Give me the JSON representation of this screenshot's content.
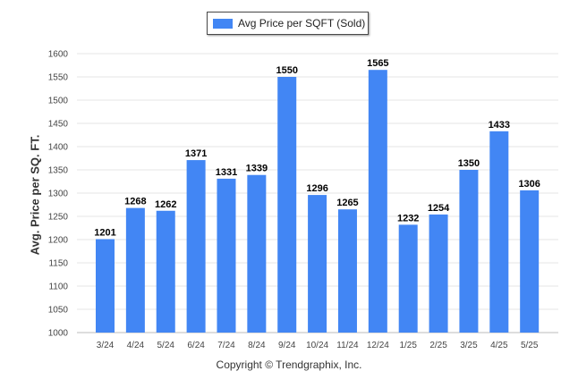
{
  "chart_data": {
    "type": "bar",
    "categories": [
      "3/24",
      "4/24",
      "5/24",
      "6/24",
      "7/24",
      "8/24",
      "9/24",
      "10/24",
      "11/24",
      "12/24",
      "1/25",
      "2/25",
      "3/25",
      "4/25",
      "5/25"
    ],
    "series": [
      {
        "name": "Avg Price per SQFT (Sold)",
        "values": [
          1201,
          1268,
          1262,
          1371,
          1331,
          1339,
          1550,
          1296,
          1265,
          1565,
          1232,
          1254,
          1350,
          1433,
          1306
        ]
      }
    ],
    "data_labels": [
      "1201",
      "1268",
      "1262",
      "1371",
      "1331",
      "1339",
      "1550",
      "1296",
      "1265",
      "1565",
      "1232",
      "1254",
      "1350",
      "1433",
      "1306"
    ],
    "ylabel": "Avg. Price per SQ. FT.",
    "xlabel": "",
    "ylim": [
      1000,
      1600
    ],
    "yticks": [
      1000,
      1050,
      1100,
      1150,
      1200,
      1250,
      1300,
      1350,
      1400,
      1450,
      1500,
      1550,
      1600
    ],
    "grid": true,
    "legend_position": "top-center",
    "bar_color": "#4286f4"
  },
  "legend": {
    "label": "Avg Price per SQFT (Sold)"
  },
  "footer": {
    "text": "Copyright © Trendgraphix, Inc."
  }
}
